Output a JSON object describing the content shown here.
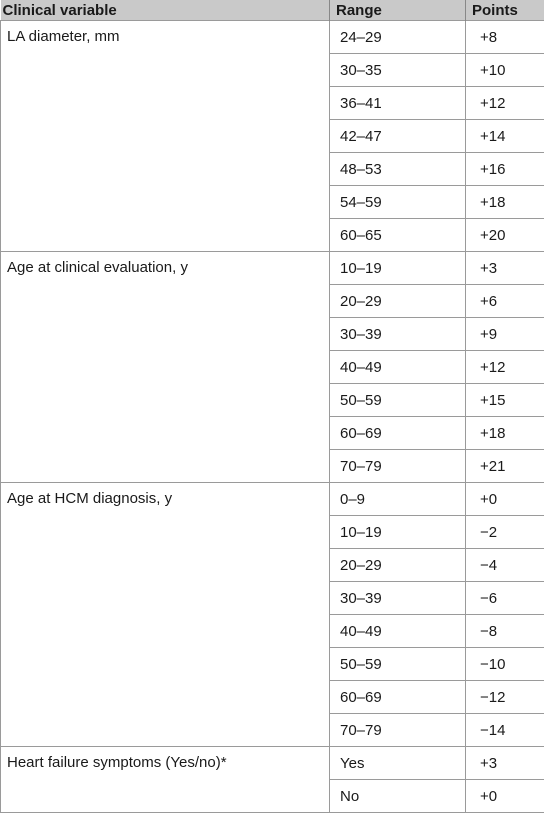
{
  "headers": {
    "variable": "Clinical variable",
    "range": "Range",
    "points": "Points"
  },
  "groups": [
    {
      "label": "LA diameter, mm",
      "rows": [
        {
          "range": "24–29",
          "points": "+8"
        },
        {
          "range": "30–35",
          "points": "+10"
        },
        {
          "range": "36–41",
          "points": "+12"
        },
        {
          "range": "42–47",
          "points": "+14"
        },
        {
          "range": "48–53",
          "points": "+16"
        },
        {
          "range": "54–59",
          "points": "+18"
        },
        {
          "range": "60–65",
          "points": "+20"
        }
      ]
    },
    {
      "label": "Age at clinical evaluation, y",
      "rows": [
        {
          "range": "10–19",
          "points": "+3"
        },
        {
          "range": "20–29",
          "points": "+6"
        },
        {
          "range": "30–39",
          "points": "+9"
        },
        {
          "range": "40–49",
          "points": "+12"
        },
        {
          "range": "50–59",
          "points": "+15"
        },
        {
          "range": "60–69",
          "points": "+18"
        },
        {
          "range": "70–79",
          "points": "+21"
        }
      ]
    },
    {
      "label": "Age at HCM diagnosis, y",
      "rows": [
        {
          "range": "0–9",
          "points": "+0"
        },
        {
          "range": "10–19",
          "points": "−2"
        },
        {
          "range": "20–29",
          "points": "−4"
        },
        {
          "range": "30–39",
          "points": "−6"
        },
        {
          "range": "40–49",
          "points": "−8"
        },
        {
          "range": "50–59",
          "points": "−10"
        },
        {
          "range": "60–69",
          "points": "−12"
        },
        {
          "range": "70–79",
          "points": "−14"
        }
      ]
    },
    {
      "label": "Heart failure symptoms (Yes/no)*",
      "rows": [
        {
          "range": "Yes",
          "points": "+3"
        },
        {
          "range": "No",
          "points": "+0"
        }
      ]
    }
  ]
}
